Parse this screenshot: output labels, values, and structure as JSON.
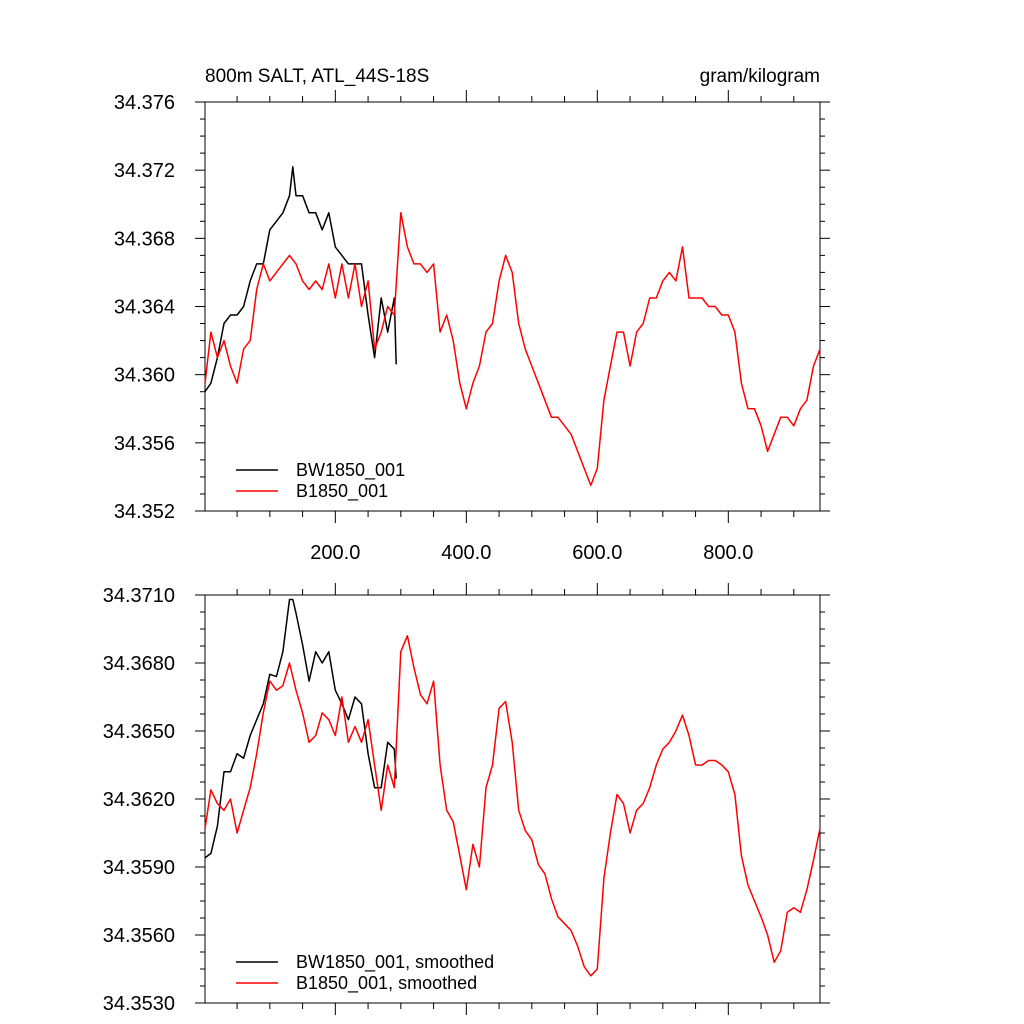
{
  "chart_data": [
    {
      "type": "line",
      "title": "800m SALT, ATL_44S-18S",
      "units_label": "gram/kilogram",
      "xlim": [
        1,
        940
      ],
      "ylim": [
        34.352,
        34.376
      ],
      "y_ticks": [
        "34.352",
        "34.356",
        "34.360",
        "34.364",
        "34.368",
        "34.372",
        "34.376"
      ],
      "x_ticks": [
        "200.0",
        "400.0",
        "600.0",
        "800.0"
      ],
      "grid": false,
      "legend_position": "bottom-left",
      "series": [
        {
          "name": "BW1850_001",
          "color": "#000000",
          "x": [
            1,
            10,
            20,
            30,
            40,
            50,
            60,
            70,
            80,
            90,
            100,
            110,
            120,
            130,
            135,
            140,
            150,
            160,
            170,
            180,
            190,
            200,
            210,
            220,
            230,
            240,
            250,
            260,
            270,
            280,
            290,
            293
          ],
          "y": [
            34.359,
            34.3595,
            34.361,
            34.363,
            34.3635,
            34.3635,
            34.364,
            34.3655,
            34.3665,
            34.3665,
            34.3685,
            34.369,
            34.3695,
            34.3705,
            34.3722,
            34.3705,
            34.3705,
            34.3695,
            34.3695,
            34.3685,
            34.3695,
            34.3675,
            34.367,
            34.3665,
            34.3665,
            34.3665,
            34.3635,
            34.361,
            34.3645,
            34.3625,
            34.3645,
            34.3606
          ]
        },
        {
          "name": "B1850_001",
          "color": "#ff0000",
          "x": [
            1,
            10,
            20,
            30,
            40,
            50,
            60,
            70,
            80,
            90,
            100,
            110,
            120,
            130,
            140,
            150,
            160,
            170,
            180,
            190,
            200,
            210,
            220,
            230,
            240,
            250,
            260,
            270,
            280,
            290,
            300,
            310,
            320,
            330,
            340,
            350,
            360,
            370,
            380,
            390,
            400,
            410,
            420,
            430,
            440,
            450,
            460,
            470,
            480,
            490,
            500,
            510,
            520,
            530,
            540,
            550,
            560,
            570,
            580,
            590,
            600,
            610,
            620,
            630,
            640,
            650,
            660,
            670,
            680,
            690,
            700,
            710,
            720,
            730,
            740,
            750,
            760,
            770,
            780,
            790,
            800,
            810,
            820,
            830,
            840,
            850,
            860,
            870,
            880,
            890,
            900,
            910,
            920,
            930,
            940
          ],
          "y": [
            34.3595,
            34.3625,
            34.361,
            34.362,
            34.3605,
            34.3595,
            34.3615,
            34.362,
            34.365,
            34.3665,
            34.3655,
            34.366,
            34.3665,
            34.367,
            34.3665,
            34.3655,
            34.365,
            34.3655,
            34.365,
            34.3665,
            34.3645,
            34.3665,
            34.3645,
            34.3665,
            34.364,
            34.3655,
            34.3615,
            34.3625,
            34.364,
            34.3635,
            34.3695,
            34.3675,
            34.3665,
            34.3665,
            34.366,
            34.3665,
            34.3625,
            34.3635,
            34.362,
            34.3595,
            34.358,
            34.3595,
            34.3605,
            34.3625,
            34.363,
            34.3655,
            34.367,
            34.366,
            34.363,
            34.3615,
            34.3605,
            34.3595,
            34.3585,
            34.3575,
            34.3575,
            34.357,
            34.3565,
            34.3555,
            34.3545,
            34.3535,
            34.3545,
            34.3585,
            34.3605,
            34.3625,
            34.3625,
            34.3605,
            34.3625,
            34.363,
            34.3645,
            34.3645,
            34.3655,
            34.366,
            34.3655,
            34.3675,
            34.3645,
            34.3645,
            34.3645,
            34.364,
            34.364,
            34.3635,
            34.3635,
            34.3625,
            34.3595,
            34.358,
            34.358,
            34.357,
            34.3555,
            34.3565,
            34.3575,
            34.3575,
            34.357,
            34.358,
            34.3585,
            34.3605,
            34.3615
          ]
        }
      ]
    },
    {
      "type": "line",
      "title": "",
      "xlim": [
        1,
        940
      ],
      "ylim": [
        34.353,
        34.371
      ],
      "y_ticks": [
        "34.3530",
        "34.3560",
        "34.3590",
        "34.3620",
        "34.3650",
        "34.3680",
        "34.3710"
      ],
      "x_ticks": [],
      "grid": false,
      "legend_position": "bottom-left",
      "series": [
        {
          "name": "BW1850_001, smoothed",
          "color": "#000000",
          "x": [
            1,
            10,
            20,
            30,
            40,
            50,
            60,
            70,
            80,
            90,
            100,
            110,
            120,
            130,
            135,
            140,
            150,
            160,
            170,
            180,
            190,
            200,
            210,
            220,
            230,
            240,
            250,
            260,
            270,
            280,
            290,
            293
          ],
          "y": [
            34.3594,
            34.3596,
            34.3608,
            34.3632,
            34.3632,
            34.364,
            34.3638,
            34.3648,
            34.3655,
            34.3662,
            34.3675,
            34.3674,
            34.3685,
            34.3708,
            34.3708,
            34.3702,
            34.3688,
            34.3672,
            34.3685,
            34.368,
            34.3685,
            34.3668,
            34.3662,
            34.3655,
            34.3665,
            34.3662,
            34.364,
            34.3625,
            34.3625,
            34.3645,
            34.3642,
            34.3629
          ]
        },
        {
          "name": "B1850_001, smoothed",
          "color": "#ff0000",
          "x": [
            1,
            10,
            20,
            30,
            40,
            50,
            60,
            70,
            80,
            90,
            100,
            110,
            120,
            130,
            140,
            150,
            160,
            170,
            180,
            190,
            200,
            210,
            220,
            230,
            240,
            250,
            260,
            270,
            280,
            290,
            300,
            310,
            320,
            330,
            340,
            350,
            360,
            370,
            380,
            390,
            400,
            410,
            420,
            430,
            440,
            450,
            460,
            470,
            480,
            490,
            500,
            510,
            520,
            530,
            540,
            550,
            560,
            570,
            580,
            590,
            600,
            610,
            620,
            630,
            640,
            650,
            660,
            670,
            680,
            690,
            700,
            710,
            720,
            730,
            740,
            750,
            760,
            770,
            780,
            790,
            800,
            810,
            820,
            830,
            840,
            850,
            860,
            870,
            880,
            890,
            900,
            910,
            920,
            930,
            940
          ],
          "y": [
            34.3607,
            34.3624,
            34.3618,
            34.3615,
            34.362,
            34.3605,
            34.3615,
            34.3625,
            34.364,
            34.3658,
            34.3672,
            34.3668,
            34.367,
            34.368,
            34.3668,
            34.3658,
            34.3645,
            34.3648,
            34.3658,
            34.3655,
            34.3648,
            34.3665,
            34.3645,
            34.3652,
            34.3645,
            34.3655,
            34.3635,
            34.3615,
            34.3635,
            34.3625,
            34.3685,
            34.3692,
            34.3678,
            34.3666,
            34.3662,
            34.3672,
            34.3635,
            34.3615,
            34.361,
            34.3595,
            34.358,
            34.36,
            34.359,
            34.3625,
            34.3635,
            34.366,
            34.3663,
            34.3645,
            34.3615,
            34.3606,
            34.3602,
            34.3591,
            34.3587,
            34.3576,
            34.3568,
            34.3565,
            34.3562,
            34.3555,
            34.3546,
            34.3542,
            34.3545,
            34.3585,
            34.3605,
            34.3622,
            34.3618,
            34.3605,
            34.3615,
            34.3618,
            34.3625,
            34.3635,
            34.3642,
            34.3645,
            34.365,
            34.3657,
            34.3648,
            34.3635,
            34.3635,
            34.3637,
            34.3637,
            34.3635,
            34.3632,
            34.3622,
            34.3595,
            34.3582,
            34.3575,
            34.3568,
            34.356,
            34.3548,
            34.3553,
            34.357,
            34.3572,
            34.357,
            34.358,
            34.3593,
            34.3607
          ]
        }
      ]
    }
  ]
}
